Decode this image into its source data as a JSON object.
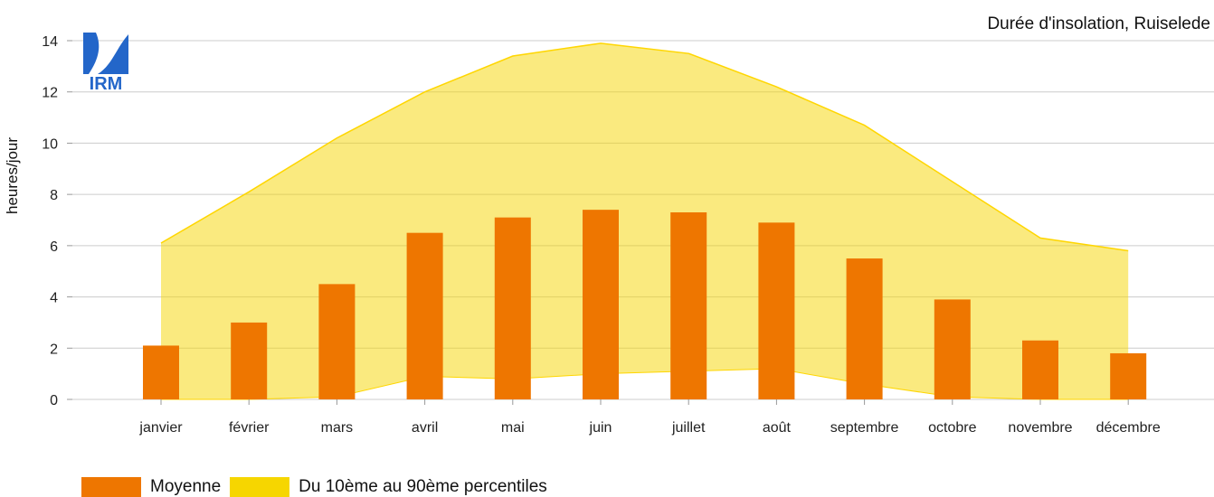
{
  "colors": {
    "mean": "#ee7600",
    "band_fill": "#f6d600",
    "band_line": "#ffd600",
    "grid": "#cccccc",
    "logo": "#2366c9"
  },
  "logo": {
    "text": "IRM"
  },
  "chart_data": {
    "type": "bar",
    "title": "Durée d'insolation, Ruiselede",
    "xlabel": "",
    "ylabel": "heures/jour",
    "ylim": [
      0,
      14
    ],
    "yticks": [
      0,
      2,
      4,
      6,
      8,
      10,
      12,
      14
    ],
    "grid": true,
    "legend_position": "bottom-left",
    "categories": [
      "janvier",
      "février",
      "mars",
      "avril",
      "mai",
      "juin",
      "juillet",
      "août",
      "septembre",
      "octobre",
      "novembre",
      "décembre"
    ],
    "series": [
      {
        "name": "Moyenne",
        "type": "bar",
        "values": [
          2.1,
          3.0,
          4.5,
          6.5,
          7.1,
          7.4,
          7.3,
          6.9,
          5.5,
          3.9,
          2.3,
          1.8
        ]
      },
      {
        "name": "Du 10ème au 90ème percentiles",
        "type": "area-range",
        "low": [
          0.0,
          0.0,
          0.1,
          0.9,
          0.8,
          1.0,
          1.1,
          1.2,
          0.6,
          0.1,
          0.0,
          0.0
        ],
        "high": [
          6.1,
          8.1,
          10.2,
          12.0,
          13.4,
          13.9,
          13.5,
          12.2,
          10.7,
          8.5,
          6.3,
          5.8
        ]
      }
    ]
  }
}
